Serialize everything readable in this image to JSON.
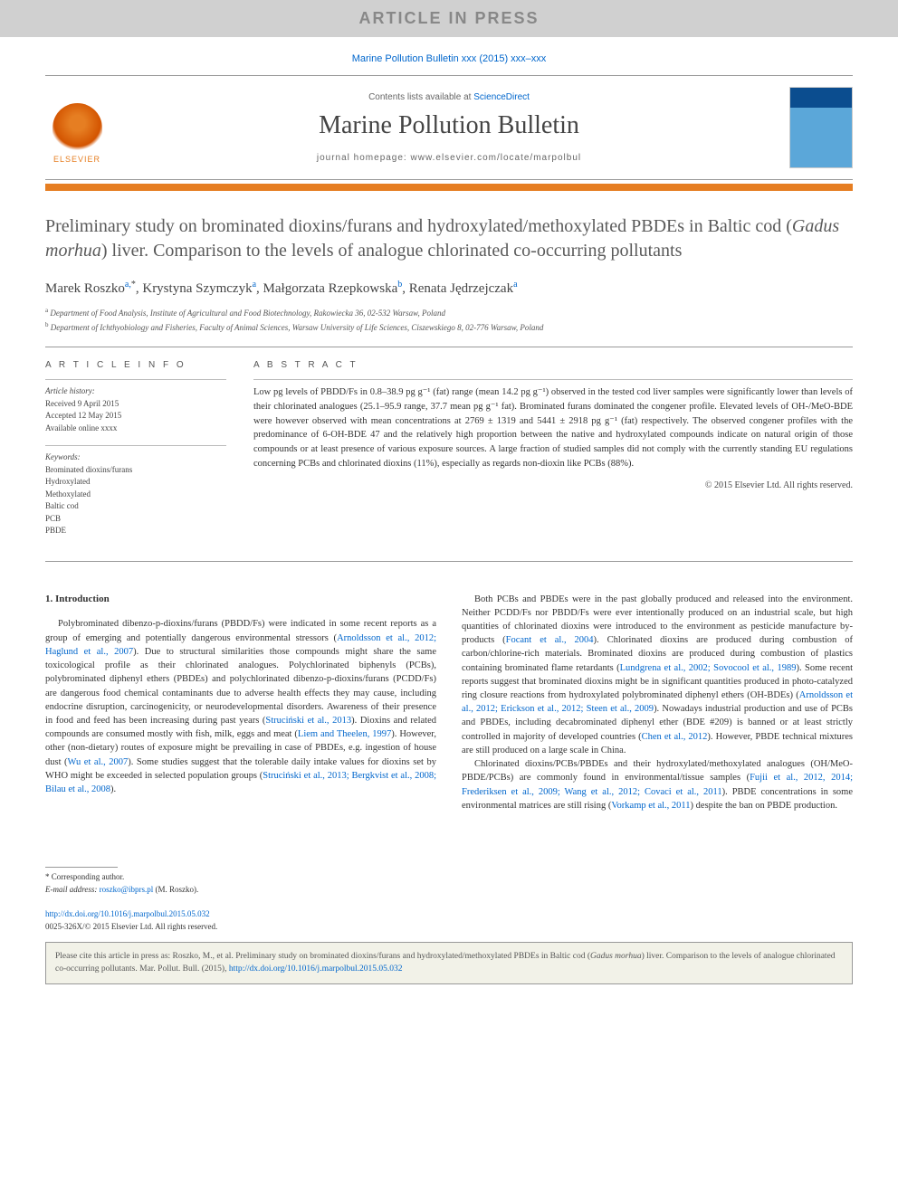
{
  "banner": {
    "article_in_press": "ARTICLE IN PRESS"
  },
  "journal_ref": {
    "text_prefix": "Marine Pollution Bulletin xxx (2015) xxx–xxx",
    "link_color": "#0066cc"
  },
  "header": {
    "contents_prefix": "Contents lists available at ",
    "contents_link": "ScienceDirect",
    "journal_name": "Marine Pollution Bulletin",
    "homepage_prefix": "journal homepage: ",
    "homepage_url": "www.elsevier.com/locate/marpolbul",
    "elsevier_label": "ELSEVIER"
  },
  "title": {
    "line": "Preliminary study on brominated dioxins/furans and hydroxylated/methoxylated PBDEs in Baltic cod (Gadus morhua) liver. Comparison to the levels of analogue chlorinated co-occurring pollutants",
    "italic_phrase": "Gadus morhua"
  },
  "authors": {
    "list": "Marek Roszko a,*, Krystyna Szymczyk a, Małgorzata Rzepkowska b, Renata Jędrzejczak a",
    "a1_name": "Marek Roszko",
    "a1_aff": "a,",
    "a1_star": "*",
    "a2_name": ", Krystyna Szymczyk",
    "a2_aff": "a",
    "a3_name": ", Małgorzata Rzepkowska",
    "a3_aff": "b",
    "a4_name": ", Renata Jędrzejczak",
    "a4_aff": "a"
  },
  "affiliations": {
    "a": "Department of Food Analysis, Institute of Agricultural and Food Biotechnology, Rakowiecka 36, 02-532 Warsaw, Poland",
    "b": "Department of Ichthyobiology and Fisheries, Faculty of Animal Sciences, Warsaw University of Life Sciences, Ciszewskiego 8, 02-776 Warsaw, Poland"
  },
  "article_info": {
    "heading": "A R T I C L E   I N F O",
    "history_label": "Article history:",
    "received": "Received 9 April 2015",
    "accepted": "Accepted 12 May 2015",
    "available": "Available online xxxx",
    "keywords_label": "Keywords:",
    "keywords": [
      "Brominated dioxins/furans",
      "Hydroxylated",
      "Methoxylated",
      "Baltic cod",
      "PCB",
      "PBDE"
    ]
  },
  "abstract": {
    "heading": "A B S T R A C T",
    "text": "Low pg levels of PBDD/Fs in 0.8–38.9 pg g⁻¹ (fat) range (mean 14.2 pg g⁻¹) observed in the tested cod liver samples were significantly lower than levels of their chlorinated analogues (25.1–95.9 range, 37.7 mean pg g⁻¹ fat). Brominated furans dominated the congener profile. Elevated levels of OH-/MeO-BDE were however observed with mean concentrations at 2769 ± 1319 and 5441 ± 2918 pg g⁻¹ (fat) respectively. The observed congener profiles with the predominance of 6-OH-BDE 47 and the relatively high proportion between the native and hydroxylated compounds indicate on natural origin of those compounds or at least presence of various exposure sources. A large fraction of studied samples did not comply with the currently standing EU regulations concerning PCBs and chlorinated dioxins (11%), especially as regards non-dioxin like PCBs (88%).",
    "copyright": "© 2015 Elsevier Ltd. All rights reserved."
  },
  "body": {
    "section_heading": "1. Introduction",
    "col1_p1_a": "Polybrominated dibenzo-p-dioxins/furans (PBDD/Fs) were indicated in some recent reports as a group of emerging and potentially dangerous environmental stressors (",
    "col1_p1_link1": "Arnoldsson et al., 2012; Haglund et al., 2007",
    "col1_p1_b": "). Due to structural similarities those compounds might share the same toxicological profile as their chlorinated analogues. Polychlorinated biphenyls (PCBs), polybrominated diphenyl ethers (PBDEs) and polychlorinated dibenzo-p-dioxins/furans (PCDD/Fs) are dangerous food chemical contaminants due to adverse health effects they may cause, including endocrine disruption, carcinogenicity, or neurodevelopmental disorders. Awareness of their presence in food and feed has been increasing during past years (",
    "col1_p1_link2": "Struciński et al., 2013",
    "col1_p1_c": "). Dioxins and related compounds are consumed mostly with fish, milk, eggs and meat (",
    "col1_p1_link3": "Liem and Theelen, 1997",
    "col1_p1_d": "). However, other (non-dietary) routes of exposure might be prevailing in case of PBDEs, e.g. ingestion of house dust (",
    "col1_p1_link4": "Wu et al., 2007",
    "col1_p1_e": "). Some studies suggest that the tolerable daily intake values for dioxins set by WHO might be exceeded in selected population groups (",
    "col1_p1_link5": "Struciński et al., 2013; Bergkvist et al., 2008; Bilau et al., 2008",
    "col1_p1_f": ").",
    "col2_p1_a": "Both PCBs and PBDEs were in the past globally produced and released into the environment. Neither PCDD/Fs nor PBDD/Fs were ever intentionally produced on an industrial scale, but high quantities of chlorinated dioxins were introduced to the environment as pesticide manufacture by-products (",
    "col2_p1_link1": "Focant et al., 2004",
    "col2_p1_b": "). Chlorinated dioxins are produced during combustion of carbon/chlorine-rich materials. Brominated dioxins are produced during combustion of plastics containing brominated flame retardants (",
    "col2_p1_link2": "Lundgrena et al., 2002; Sovocool et al., 1989",
    "col2_p1_c": "). Some recent reports suggest that brominated dioxins might be in significant quantities produced in photo-catalyzed ring closure reactions from hydroxylated polybrominated diphenyl ethers (OH-BDEs) (",
    "col2_p1_link3": "Arnoldsson et al., 2012; Erickson et al., 2012; Steen et al., 2009",
    "col2_p1_d": "). Nowadays industrial production and use of PCBs and PBDEs, including decabrominated diphenyl ether (BDE #209) is banned or at least strictly controlled in majority of developed countries (",
    "col2_p1_link4": "Chen et al., 2012",
    "col2_p1_e": "). However, PBDE technical mixtures are still produced on a large scale in China.",
    "col2_p2_a": "Chlorinated dioxins/PCBs/PBDEs and their hydroxylated/methoxylated analogues (OH/MeO-PBDE/PCBs) are commonly found in environmental/tissue samples (",
    "col2_p2_link1": "Fujii et al., 2012, 2014; Frederiksen et al., 2009; Wang et al., 2012; Covaci et al., 2011",
    "col2_p2_b": "). PBDE concentrations in some environmental matrices are still rising (",
    "col2_p2_link2": "Vorkamp et al., 2011",
    "col2_p2_c": ") despite the ban on PBDE production."
  },
  "footer": {
    "corr_label": "* Corresponding author.",
    "email_label": "E-mail address:",
    "email": "roszko@ibprs.pl",
    "email_name": "(M. Roszko).",
    "doi_url": "http://dx.doi.org/10.1016/j.marpolbul.2015.05.032",
    "issn_line": "0025-326X/© 2015 Elsevier Ltd. All rights reserved."
  },
  "citebox": {
    "text_a": "Please cite this article in press as: Roszko, M., et al. Preliminary study on brominated dioxins/furans and hydroxylated/methoxylated PBDEs in Baltic cod (",
    "italic": "Gadus morhua",
    "text_b": ") liver. Comparison to the levels of analogue chlorinated co-occurring pollutants. Mar. Pollut. Bull. (2015), ",
    "link": "http://dx.doi.org/10.1016/j.marpolbul.2015.05.032"
  },
  "colors": {
    "link": "#0066cc",
    "orange": "#e67e22",
    "grey_banner": "#d0d0d0",
    "cite_bg": "#f2f2e8"
  }
}
